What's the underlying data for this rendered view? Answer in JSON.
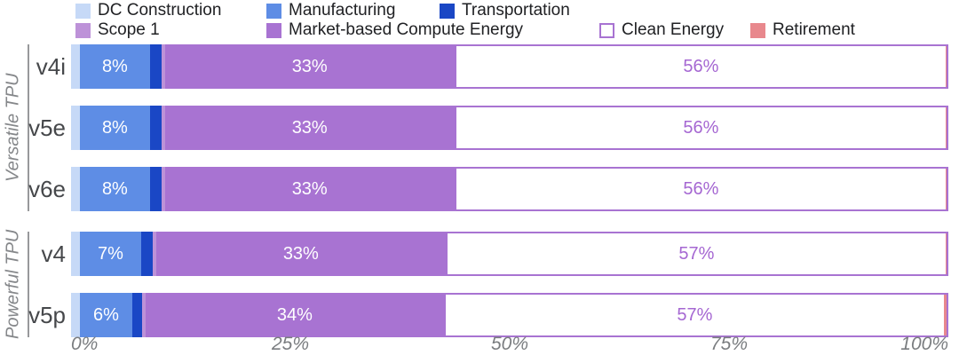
{
  "legend": {
    "items": [
      {
        "name": "dc-construction",
        "label": "DC Construction",
        "color": "#c6d9f7",
        "outlined": false
      },
      {
        "name": "manufacturing",
        "label": "Manufacturing",
        "color": "#5e8de5",
        "outlined": false
      },
      {
        "name": "transportation",
        "label": "Transportation",
        "color": "#1a47c5",
        "outlined": false
      },
      {
        "name": "scope-1",
        "label": "Scope 1",
        "color": "#bd92d8",
        "outlined": false
      },
      {
        "name": "market-based-compute-energy",
        "label": "Market-based Compute Energy",
        "color": "#a873d2",
        "outlined": false
      },
      {
        "name": "clean-energy",
        "label": "Clean Energy",
        "color": "#ffffff",
        "outlined": true,
        "outline_color": "#a873d2"
      },
      {
        "name": "retirement",
        "label": "Retirement",
        "color": "#e8888d",
        "outlined": false
      }
    ]
  },
  "chart_data": {
    "type": "bar",
    "orientation": "horizontal-stacked",
    "categories": [
      "v4i",
      "v5e",
      "v6e",
      "v4",
      "v5p"
    ],
    "groups": [
      {
        "label": "Versatile TPU",
        "categories": [
          "v4i",
          "v5e",
          "v6e"
        ]
      },
      {
        "label": "Powerful TPU",
        "categories": [
          "v4",
          "v5p"
        ]
      }
    ],
    "series": [
      {
        "name": "DC Construction",
        "color": "#c6d9f7",
        "values": [
          1.0,
          1.0,
          1.0,
          1.0,
          1.0
        ],
        "labels": null
      },
      {
        "name": "Manufacturing",
        "color": "#5e8de5",
        "values": [
          8,
          8,
          8,
          7,
          6
        ],
        "labels": [
          "8%",
          "8%",
          "8%",
          "7%",
          "6%"
        ],
        "label_color": "#ffffff"
      },
      {
        "name": "Transportation",
        "color": "#1a47c5",
        "values": [
          1.3,
          1.3,
          1.3,
          1.3,
          1.1
        ],
        "labels": null
      },
      {
        "name": "Scope 1",
        "color": "#bd92d8",
        "values": [
          0.4,
          0.4,
          0.4,
          0.4,
          0.4
        ],
        "labels": null
      },
      {
        "name": "Market-based Compute Energy",
        "color": "#a873d2",
        "values": [
          33,
          33,
          33,
          33,
          34
        ],
        "labels": [
          "33%",
          "33%",
          "33%",
          "33%",
          "34%"
        ],
        "label_color": "#ffffff"
      },
      {
        "name": "Clean Energy",
        "color": "#ffffff",
        "border_color": "#a873d2",
        "values": [
          56,
          56,
          56,
          57,
          57
        ],
        "labels": [
          "56%",
          "56%",
          "56%",
          "57%",
          "57%"
        ],
        "label_color": "#a567d2"
      },
      {
        "name": "Retirement",
        "color": "#e8888d",
        "values": [
          0.3,
          0.3,
          0.3,
          0.3,
          0.5
        ],
        "labels": null
      }
    ],
    "xlabel": "",
    "ylabel": "",
    "xlim": [
      0,
      100
    ],
    "xticks": [
      "0%",
      "25%",
      "50%",
      "75%",
      "100%"
    ],
    "grid": false,
    "legend_position": "top"
  },
  "colors": {
    "accent_purple": "#a873d2",
    "axis_text": "#7a7d80",
    "row_label_text": "#46484b",
    "group_label_text": "#85878a",
    "legend_text": "#202124"
  }
}
